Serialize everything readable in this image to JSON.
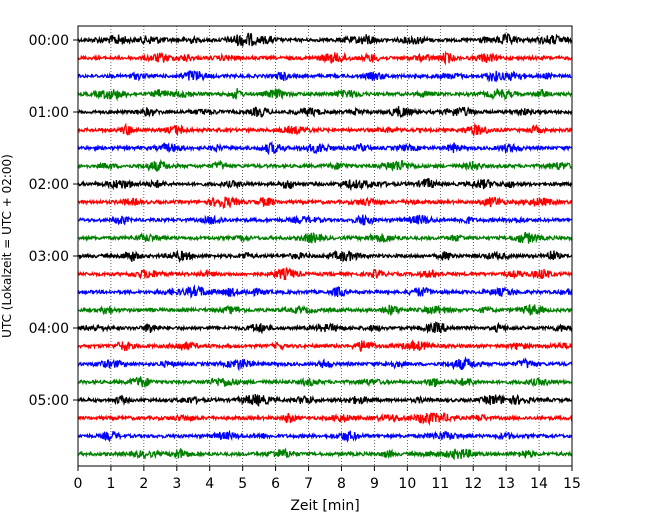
{
  "chart_data": {
    "type": "line",
    "title": "",
    "xlabel": "Zeit  [min]",
    "ylabel": "UTC (Lokalzeit = UTC + 02:00)",
    "xlim": [
      0,
      15
    ],
    "x_ticks": [
      0,
      1,
      2,
      3,
      4,
      5,
      6,
      7,
      8,
      9,
      10,
      11,
      12,
      13,
      14,
      15
    ],
    "x_tick_labels": [
      "0",
      "1",
      "2",
      "3",
      "4",
      "5",
      "6",
      "7",
      "8",
      "9",
      "10",
      "11",
      "12",
      "13",
      "14",
      "15"
    ],
    "y_tick_labels": [
      "00:00",
      "01:00",
      "02:00",
      "03:00",
      "04:00",
      "05:00"
    ],
    "y_tick_rows": [
      0,
      4,
      8,
      12,
      16,
      20
    ],
    "grid_x": true,
    "colors": [
      "#000000",
      "#ff0000",
      "#0000ff",
      "#008000"
    ],
    "series": [
      {
        "values": [
          0.6,
          1.2,
          2.2,
          3.4,
          4.9,
          5.2,
          5.7,
          8.3,
          8.8,
          10.2,
          12.3,
          13.0,
          14.4
        ]
      },
      {
        "values": [
          2.5,
          3.3,
          4.5,
          7.8,
          8.9,
          10.5,
          11.2,
          12.4
        ]
      },
      {
        "values": [
          1.8,
          3.5,
          6.2,
          9.0,
          11.3,
          12.6,
          13.2,
          14.3
        ]
      },
      {
        "values": [
          1.0,
          2.5,
          3.2,
          4.8,
          6.0,
          8.2,
          10.5,
          12.8,
          14.1
        ]
      },
      {
        "values": [
          2.1,
          3.8,
          5.5,
          7.0,
          8.5,
          9.8,
          11.6,
          13.5
        ]
      },
      {
        "values": [
          1.5,
          3.0,
          6.6,
          9.4,
          12.1,
          13.9
        ]
      },
      {
        "values": [
          2.8,
          4.2,
          5.9,
          7.3,
          8.6,
          10.0,
          11.4,
          13.1
        ]
      },
      {
        "values": [
          0.9,
          2.4,
          4.3,
          7.9,
          9.7,
          12.0,
          14.6
        ]
      },
      {
        "values": [
          1.3,
          2.4,
          4.7,
          6.4,
          8.3,
          8.9,
          10.6,
          12.3,
          13.1
        ]
      },
      {
        "values": [
          1.6,
          4.4,
          5.7,
          8.8,
          10.1,
          12.6,
          14.0
        ]
      },
      {
        "values": [
          1.3,
          4.1,
          6.9,
          8.7,
          10.4,
          11.8,
          13.3
        ]
      },
      {
        "values": [
          2.1,
          5.0,
          7.1,
          9.2,
          11.5,
          13.6
        ]
      },
      {
        "values": [
          1.6,
          3.1,
          5.1,
          6.7,
          8.1,
          11.2,
          12.7,
          14.4
        ]
      },
      {
        "values": [
          2.1,
          3.9,
          6.3,
          9.1,
          10.7,
          13.3,
          14.1
        ]
      },
      {
        "values": [
          2.8,
          3.6,
          4.6,
          5.3,
          7.9,
          10.4,
          12.9,
          14.9
        ]
      },
      {
        "values": [
          0.9,
          4.7,
          6.8,
          9.5,
          10.9,
          12.4,
          13.8
        ]
      },
      {
        "values": [
          0.5,
          2.2,
          5.5,
          7.6,
          9.0,
          10.9,
          12.8,
          14.7
        ]
      },
      {
        "values": [
          1.4,
          3.2,
          6.1,
          8.7,
          10.3,
          13.4,
          14.8
        ]
      },
      {
        "values": [
          1.0,
          2.7,
          4.9,
          7.5,
          9.6,
          11.7,
          13.6
        ]
      },
      {
        "values": [
          1.9,
          4.4,
          7.0,
          8.9,
          10.8,
          11.8,
          14.0
        ]
      },
      {
        "values": [
          1.3,
          3.4,
          5.4,
          6.9,
          8.5,
          10.4,
          12.6,
          13.3
        ]
      },
      {
        "values": [
          3.2,
          6.4,
          8.0,
          9.5,
          10.5,
          11.0,
          12.2
        ]
      },
      {
        "values": [
          1.0,
          4.5,
          5.6,
          8.2,
          11.1,
          13.0
        ]
      },
      {
        "values": [
          2.0,
          3.1,
          6.2,
          9.4,
          10.7,
          11.6,
          13.6
        ]
      }
    ]
  }
}
